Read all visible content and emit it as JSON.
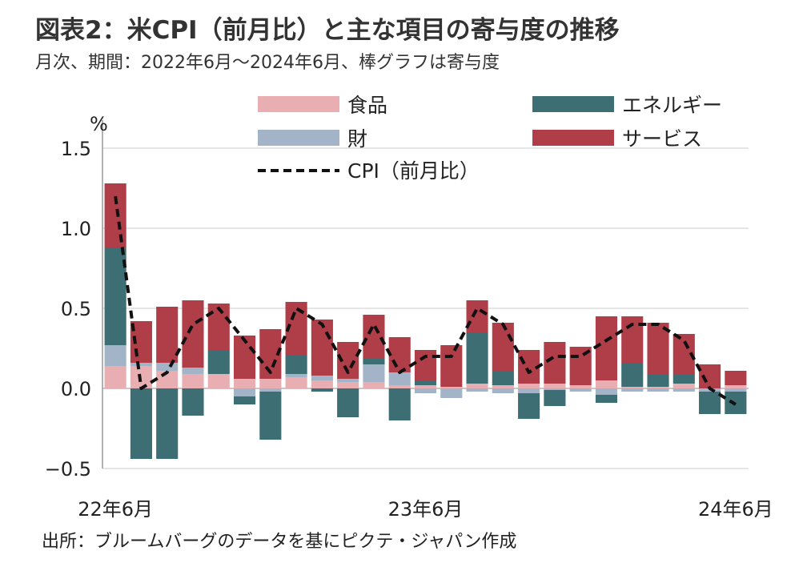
{
  "title": "図表2：米CPI（前月比）と主な項目の寄与度の推移",
  "subtitle": "月次、期間：2022年6月～2024年6月、棒グラフは寄与度",
  "source": "出所：ブルームバーグのデータを基にピクテ・ジャパン作成",
  "chart_data": {
    "type": "bar",
    "stacked": true,
    "unit_label": "%",
    "ylim": [
      -0.5,
      1.5
    ],
    "yticks": [
      1.5,
      1.0,
      0.5,
      0.0,
      -0.5
    ],
    "ytick_labels": [
      "1.5",
      "1.0",
      "0.5",
      "0.0",
      "−0.5"
    ],
    "grid": true,
    "legend_position": "top",
    "x_tick_labels": [
      {
        "index": 0,
        "label": "22年6月"
      },
      {
        "index": 12,
        "label": "23年6月"
      },
      {
        "index": 24,
        "label": "24年6月"
      }
    ],
    "categories": [
      "2022-06",
      "2022-07",
      "2022-08",
      "2022-09",
      "2022-10",
      "2022-11",
      "2022-12",
      "2023-01",
      "2023-02",
      "2023-03",
      "2023-04",
      "2023-05",
      "2023-06",
      "2023-07",
      "2023-08",
      "2023-09",
      "2023-10",
      "2023-11",
      "2023-12",
      "2024-01",
      "2024-02",
      "2024-03",
      "2024-04",
      "2024-05",
      "2024-06"
    ],
    "series": [
      {
        "name": "食品",
        "color": "#e8aeb2",
        "values": [
          0.14,
          0.14,
          0.11,
          0.09,
          0.09,
          0.06,
          0.06,
          0.07,
          0.05,
          0.04,
          0.04,
          0.02,
          0.02,
          0.01,
          0.03,
          0.02,
          0.03,
          0.03,
          0.02,
          0.05,
          0.01,
          0.01,
          0.03,
          0.0,
          0.02
        ]
      },
      {
        "name": "財",
        "color": "#a3b4c8",
        "values": [
          0.13,
          0.02,
          0.05,
          0.04,
          0.0,
          -0.05,
          -0.02,
          0.02,
          0.03,
          0.02,
          0.11,
          0.08,
          -0.03,
          -0.06,
          -0.02,
          -0.03,
          -0.03,
          -0.01,
          -0.02,
          -0.04,
          -0.02,
          -0.02,
          -0.02,
          -0.02,
          -0.02
        ]
      },
      {
        "name": "エネルギー",
        "color": "#3d6e73",
        "values": [
          0.61,
          -0.44,
          -0.44,
          -0.17,
          0.15,
          -0.05,
          -0.3,
          0.12,
          -0.02,
          -0.18,
          0.04,
          -0.2,
          0.03,
          0.0,
          0.32,
          0.09,
          -0.16,
          -0.1,
          0.0,
          -0.05,
          0.15,
          0.08,
          0.06,
          -0.14,
          -0.14
        ]
      },
      {
        "name": "サービス",
        "color": "#b03e49",
        "values": [
          0.4,
          0.26,
          0.35,
          0.42,
          0.29,
          0.27,
          0.31,
          0.33,
          0.35,
          0.23,
          0.27,
          0.22,
          0.19,
          0.26,
          0.2,
          0.3,
          0.21,
          0.26,
          0.24,
          0.4,
          0.29,
          0.32,
          0.25,
          0.15,
          0.09
        ]
      },
      {
        "name": "CPI（前月比）",
        "type": "line",
        "style": "dashed",
        "color": "#111111",
        "values": [
          1.2,
          0.0,
          0.1,
          0.4,
          0.5,
          0.3,
          0.1,
          0.5,
          0.4,
          0.1,
          0.4,
          0.1,
          0.2,
          0.2,
          0.5,
          0.4,
          0.1,
          0.2,
          0.2,
          0.3,
          0.4,
          0.4,
          0.3,
          0.0,
          -0.1
        ]
      }
    ]
  }
}
